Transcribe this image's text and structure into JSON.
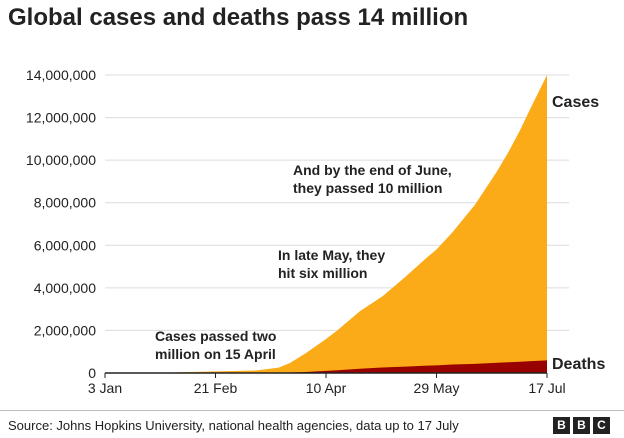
{
  "title": "Global cases and deaths pass 14 million",
  "source": "Source: Johns Hopkins University, national health agencies, data up to 17 July",
  "logo": [
    "B",
    "B",
    "C"
  ],
  "colors": {
    "cases": "#fbab18",
    "deaths": "#990000",
    "grid": "#dcdcdc",
    "axis": "#222222"
  },
  "chart_data": {
    "type": "area",
    "title": "Global cases and deaths pass 14 million",
    "xlabel": "",
    "ylabel": "",
    "x_ticks": [
      "3 Jan",
      "21 Feb",
      "10 Apr",
      "29 May",
      "17 Jul"
    ],
    "y_ticks": [
      "0",
      "2,000,000",
      "4,000,000",
      "6,000,000",
      "8,000,000",
      "10,000,000",
      "12,000,000",
      "14,000,000"
    ],
    "ylim": [
      0,
      14000000
    ],
    "grid": true,
    "x_dates": [
      "2020-01-03",
      "2020-01-22",
      "2020-02-21",
      "2020-03-10",
      "2020-03-20",
      "2020-03-25",
      "2020-04-01",
      "2020-04-10",
      "2020-04-15",
      "2020-04-25",
      "2020-05-05",
      "2020-05-15",
      "2020-05-25",
      "2020-05-29",
      "2020-06-05",
      "2020-06-15",
      "2020-06-25",
      "2020-06-30",
      "2020-07-05",
      "2020-07-10",
      "2020-07-17"
    ],
    "series": [
      {
        "name": "Cases",
        "values": [
          0,
          600,
          76000,
          120000,
          250000,
          470000,
          930000,
          1600000,
          2000000,
          2900000,
          3600000,
          4500000,
          5450000,
          5800000,
          6600000,
          7900000,
          9500000,
          10400000,
          11400000,
          12500000,
          14000000
        ]
      },
      {
        "name": "Deaths",
        "values": [
          0,
          20,
          2300,
          4300,
          11000,
          21000,
          47000,
          100000,
          130000,
          200000,
          260000,
          300000,
          345000,
          360000,
          400000,
          430000,
          480000,
          505000,
          530000,
          560000,
          595000
        ]
      }
    ],
    "annotations": [
      {
        "lines": [
          "Cases passed two",
          "million on 15 April"
        ],
        "x": "2020-04-05",
        "y": 1250000
      },
      {
        "lines": [
          "In late May, they",
          "hit six million"
        ],
        "x": "2020-05-13",
        "y": 5300000
      },
      {
        "lines": [
          "And by the end of June,",
          "they passed 10 million"
        ],
        "x": "2020-05-22",
        "y": 9700000
      }
    ]
  }
}
